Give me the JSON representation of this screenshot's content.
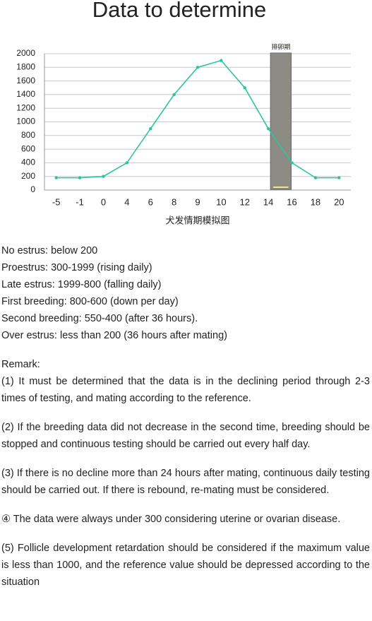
{
  "chart_data": {
    "type": "line",
    "title": "Data to determine",
    "categories": [
      "-5",
      "-1",
      "0",
      "4",
      "6",
      "8",
      "9",
      "10",
      "12",
      "14",
      "16",
      "18",
      "20"
    ],
    "values": [
      180,
      180,
      200,
      400,
      900,
      1400,
      1800,
      1900,
      1500,
      900,
      400,
      180,
      180
    ],
    "color": "#2cc4a0",
    "x_label": "犬发情期模拟图",
    "ylim": [
      0,
      2000
    ],
    "yticks": [
      0,
      200,
      400,
      600,
      800,
      1000,
      1200,
      1400,
      1600,
      1800,
      2000
    ],
    "grid": true,
    "band": {
      "label": "排卵期",
      "from": "14",
      "to": "16",
      "color": "#8c8c84"
    }
  },
  "document": {
    "lines": [
      "No estrus: below 200",
      "Proestrus: 300-1999 (rising daily)",
      "Late estrus: 1999-800 (falling daily)",
      "First breeding: 800-600 (down per day)",
      "Second breeding: 550-400 (after 36 hours).",
      "Over estrus: less than 200 (36 hours after mating)"
    ],
    "remark": "Remark:",
    "paragraphs": [
      "(1) It must be determined that the data is in the declining period through 2-3 times of testing, and mating according to the reference.",
      "(2) If the breeding data did not decrease in the second time, breeding should be stopped and continuous testing should be carried out every half day.",
      "(3) If there is no decline more than 24 hours after mating, continuous daily testing should be carried out. If there is rebound, re-mating must be considered.",
      "④ The data were always under 300 considering uterine or ovarian disease.",
      "(5) Follicle development retardation should be considered if the maximum value is less than 1000, and the reference value should be depressed according to the situation"
    ]
  }
}
